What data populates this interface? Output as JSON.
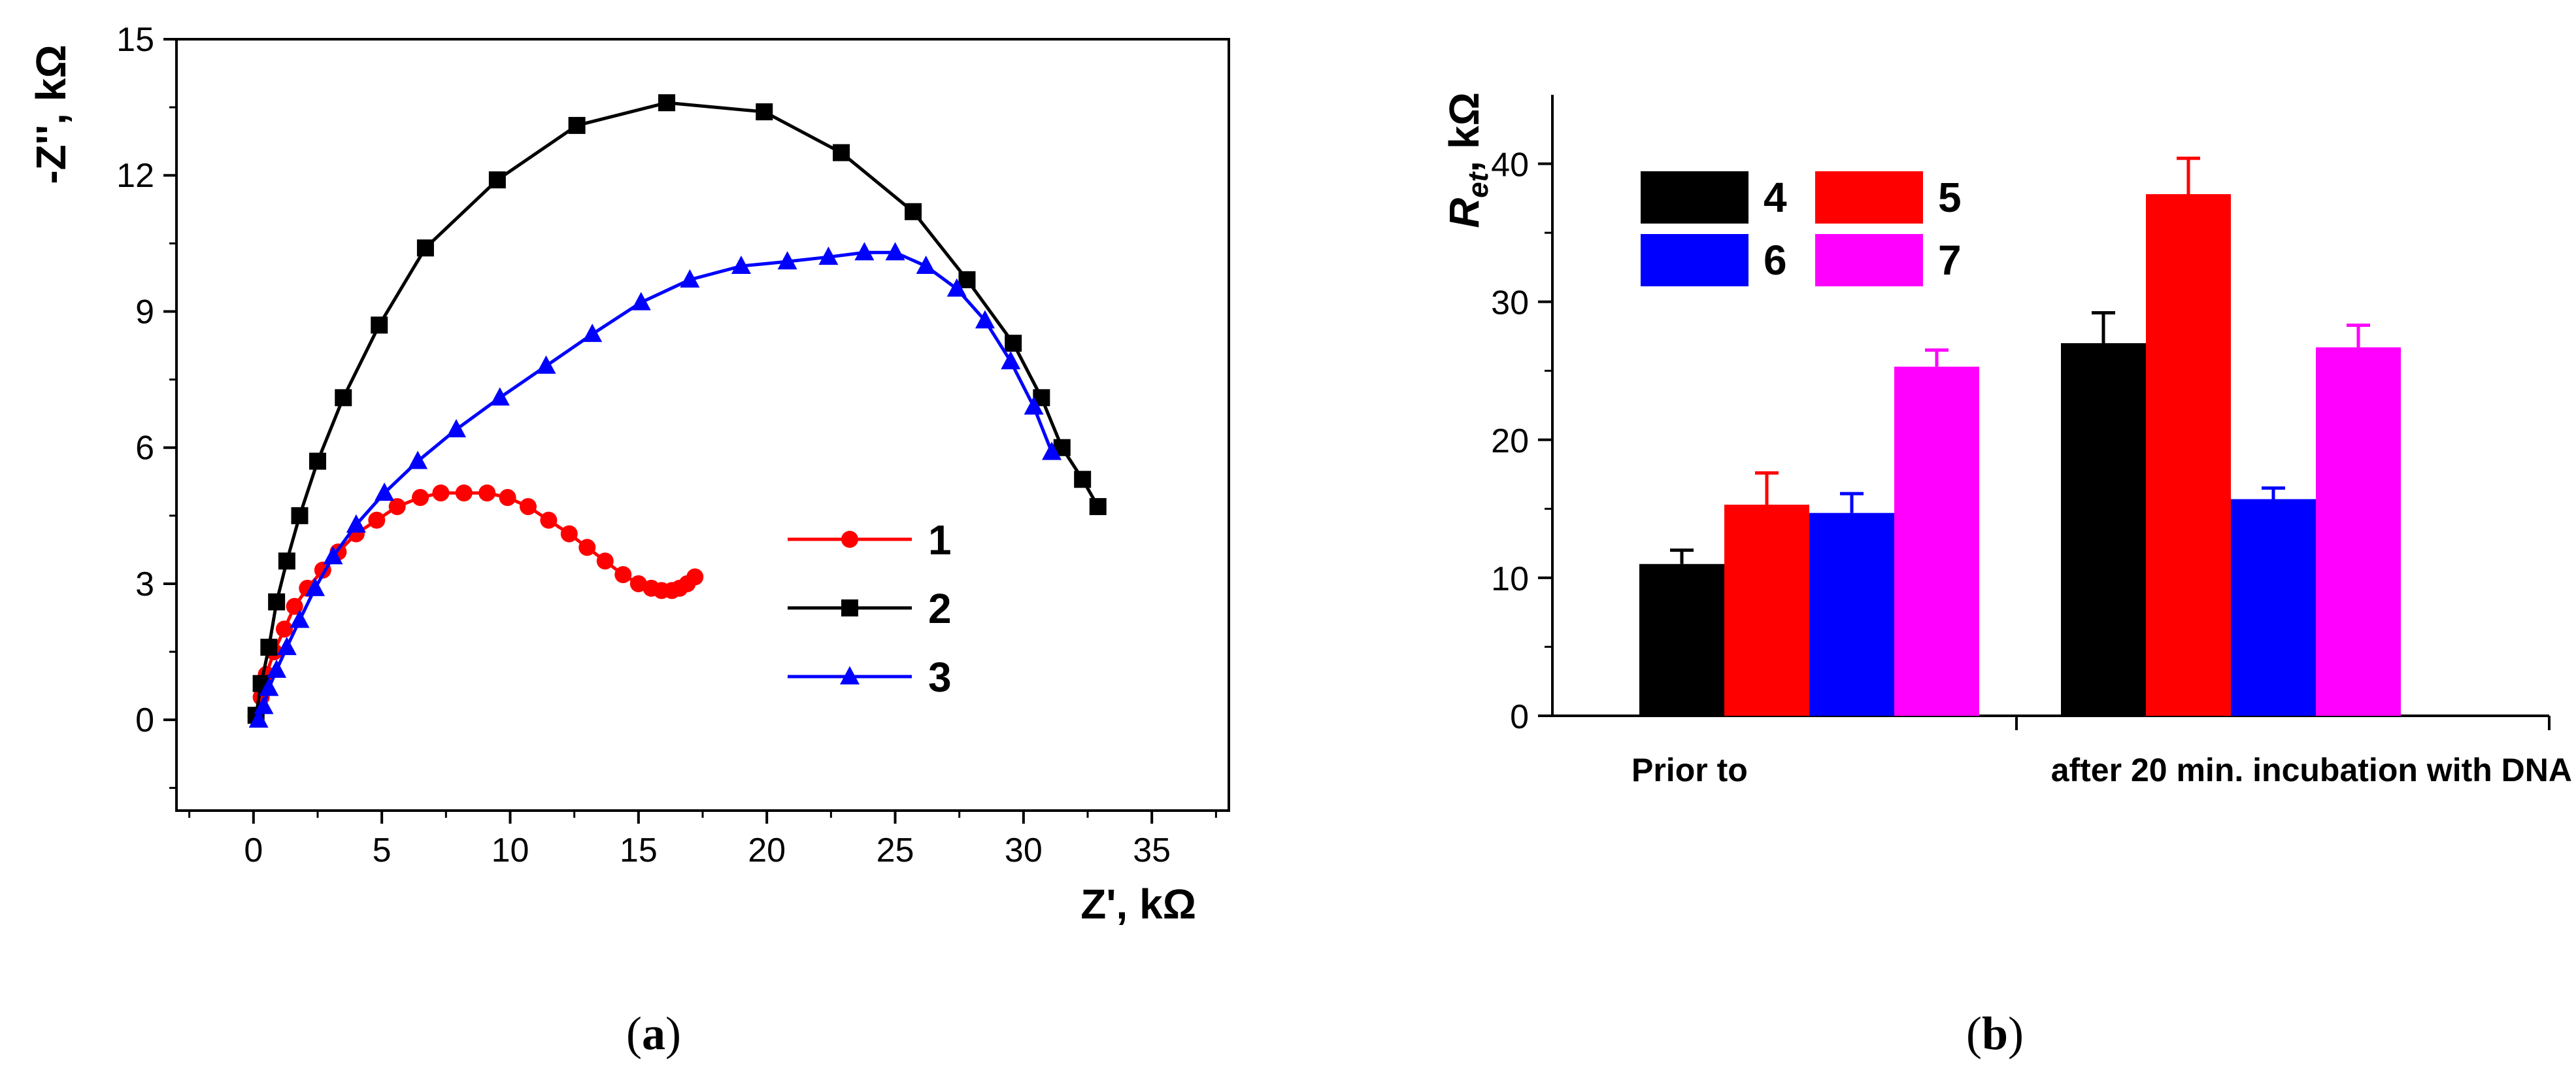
{
  "chart_data": [
    {
      "type": "line",
      "panel": "a",
      "xlabel": "Z', kΩ",
      "ylabel": "-Z'', kΩ",
      "xlim": [
        -3,
        38
      ],
      "ylim": [
        -2,
        15
      ],
      "xticks": [
        0,
        5,
        10,
        15,
        20,
        25,
        30,
        35
      ],
      "yticks": [
        0,
        3,
        6,
        9,
        12,
        15
      ],
      "legend_position": "middle-right",
      "series": [
        {
          "name": "1",
          "color": "#ff0000",
          "marker": "circle",
          "x": [
            0.1,
            0.3,
            0.5,
            0.8,
            1.2,
            1.6,
            2.1,
            2.7,
            3.3,
            4.0,
            4.8,
            5.6,
            6.5,
            7.3,
            8.2,
            9.1,
            9.9,
            10.7,
            11.5,
            12.3,
            13.0,
            13.7,
            14.4,
            15.0,
            15.5,
            15.9,
            16.3,
            16.6,
            16.9,
            17.2
          ],
          "y": [
            0.1,
            0.5,
            1.0,
            1.5,
            2.0,
            2.5,
            2.9,
            3.3,
            3.7,
            4.1,
            4.4,
            4.7,
            4.9,
            5.0,
            5.0,
            5.0,
            4.9,
            4.7,
            4.4,
            4.1,
            3.8,
            3.5,
            3.2,
            3.0,
            2.9,
            2.85,
            2.85,
            2.9,
            3.0,
            3.15
          ]
        },
        {
          "name": "2",
          "color": "#000000",
          "marker": "square",
          "x": [
            0.1,
            0.3,
            0.6,
            0.9,
            1.3,
            1.8,
            2.5,
            3.5,
            4.9,
            6.7,
            9.5,
            12.6,
            16.1,
            19.9,
            22.9,
            25.7,
            27.8,
            29.6,
            30.7,
            31.5,
            32.3,
            32.9
          ],
          "y": [
            0.1,
            0.8,
            1.6,
            2.6,
            3.5,
            4.5,
            5.7,
            7.1,
            8.7,
            10.4,
            11.9,
            13.1,
            13.6,
            13.4,
            12.5,
            11.2,
            9.7,
            8.3,
            7.1,
            6.0,
            5.3,
            4.7
          ]
        },
        {
          "name": "3",
          "color": "#0000ff",
          "marker": "triangle",
          "x": [
            0.2,
            0.4,
            0.6,
            0.9,
            1.3,
            1.8,
            2.4,
            3.1,
            4.0,
            5.1,
            6.4,
            7.9,
            9.6,
            11.4,
            13.2,
            15.1,
            17.0,
            19.0,
            20.8,
            22.4,
            23.8,
            25.0,
            26.2,
            27.4,
            28.5,
            29.5,
            30.4,
            31.1
          ],
          "y": [
            0.0,
            0.3,
            0.7,
            1.1,
            1.6,
            2.2,
            2.9,
            3.6,
            4.3,
            5.0,
            5.7,
            6.4,
            7.1,
            7.8,
            8.5,
            9.2,
            9.7,
            10.0,
            10.1,
            10.2,
            10.3,
            10.3,
            10.0,
            9.5,
            8.8,
            7.9,
            6.9,
            5.9
          ]
        }
      ]
    },
    {
      "type": "bar",
      "panel": "b",
      "ylabel_main": "R",
      "ylabel_sub": "et",
      "ylabel_unit": ", kΩ",
      "ylim": [
        0,
        45
      ],
      "yticks": [
        0,
        10,
        20,
        30,
        40
      ],
      "categories": [
        "Prior to",
        "after 20 min. incubation with DNA"
      ],
      "legend_position": "top-left",
      "series": [
        {
          "name": "4",
          "color": "#000000",
          "values": [
            11.0,
            27.0
          ],
          "errors": [
            1.0,
            2.2
          ]
        },
        {
          "name": "5",
          "color": "#ff0000",
          "values": [
            15.3,
            37.8
          ],
          "errors": [
            2.3,
            2.6
          ]
        },
        {
          "name": "6",
          "color": "#0000ff",
          "values": [
            14.7,
            15.7
          ],
          "errors": [
            1.4,
            0.8
          ]
        },
        {
          "name": "7",
          "color": "#ff00ff",
          "values": [
            25.3,
            26.7
          ],
          "errors": [
            1.2,
            1.6
          ]
        }
      ]
    }
  ],
  "captions": {
    "a_open": "(",
    "a_letter": "a",
    "a_close": ")",
    "b_open": "(",
    "b_letter": "b",
    "b_close": ")"
  }
}
